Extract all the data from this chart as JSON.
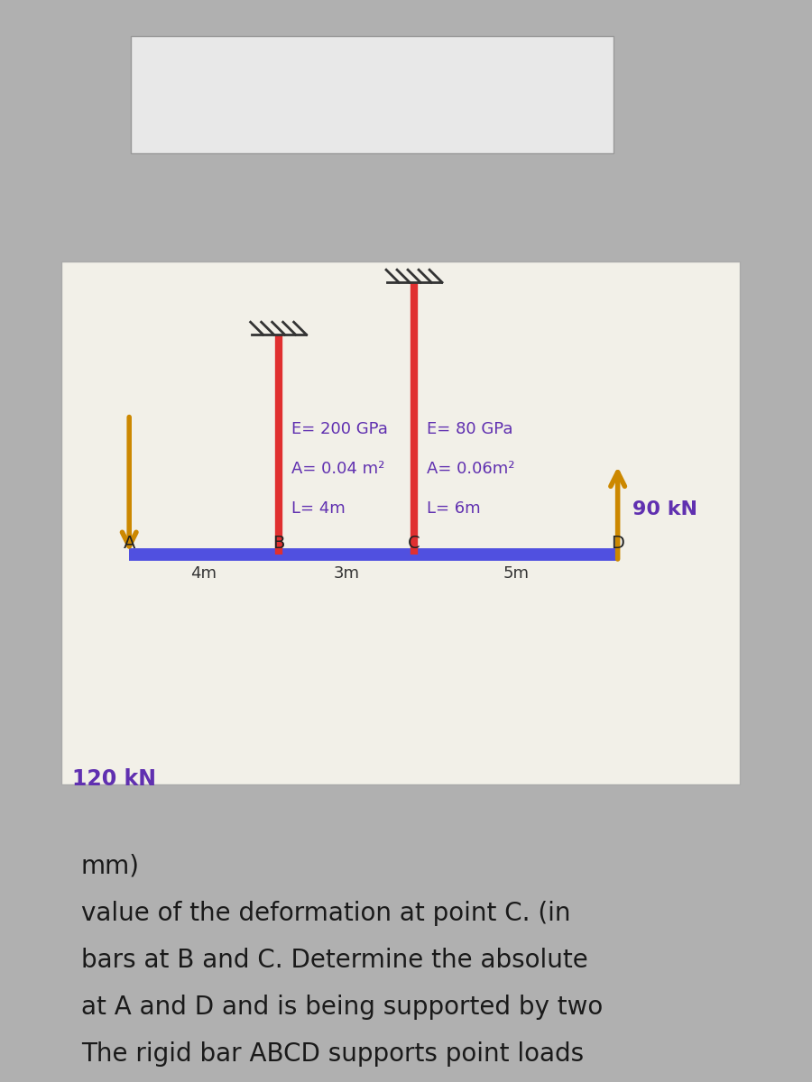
{
  "title_lines": [
    "The rigid bar ABCD supports point loads",
    "at A and D and is being supported by two",
    "bars at B and C. Determine the absolute",
    "value of the deformation at point C. (in",
    "mm)"
  ],
  "title_fontsize": 20,
  "title_color": "#1a1a1a",
  "bg_color": "#b0b0b0",
  "diagram_bg": "#f2f0e8",
  "bar_color": "#5050e0",
  "support_bar_color": "#e03030",
  "arrow_color": "#cc8800",
  "label_color": "#6030b0",
  "point_label_color": "#222222",
  "dim_label_color": "#333333",
  "load_120_text": "120 kN",
  "load_90_text": "90 kN",
  "bar_B_line1": "L= 4m",
  "bar_B_line2": "A= 0.04 m²",
  "bar_B_line3": "E= 200 GPa",
  "bar_C_line1": "L= 6m",
  "bar_C_line2": "A= 0.06m²",
  "bar_C_line3": "E= 80 GPa"
}
